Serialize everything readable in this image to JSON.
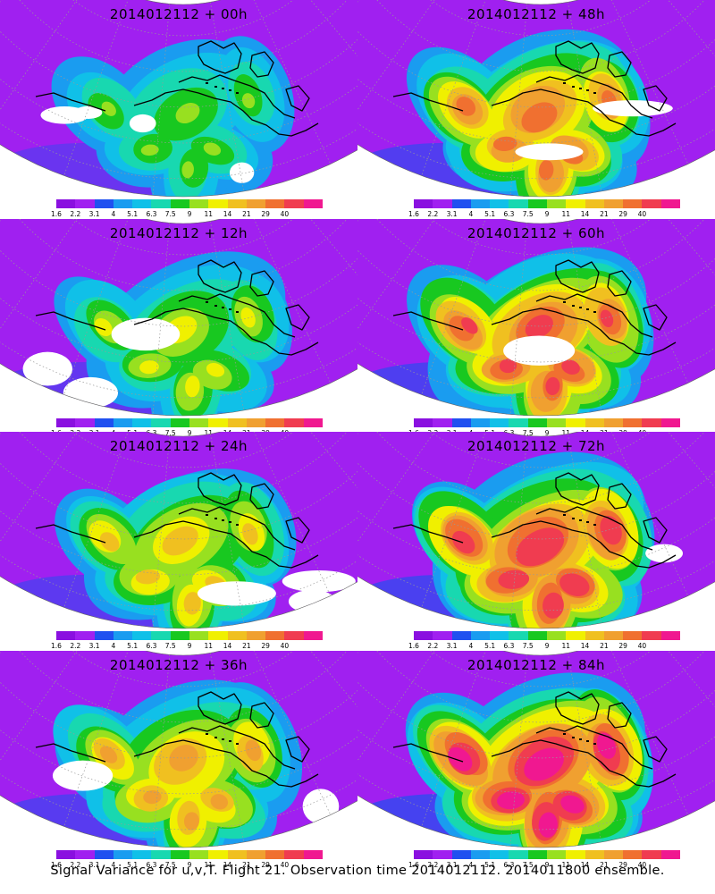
{
  "panels": [
    {
      "title": "2014012112 + 00h",
      "intensity": 0.35
    },
    {
      "title": "2014012112 + 48h",
      "intensity": 0.72
    },
    {
      "title": "2014012112 + 12h",
      "intensity": 0.45
    },
    {
      "title": "2014012112 + 60h",
      "intensity": 0.78
    },
    {
      "title": "2014012112 + 24h",
      "intensity": 0.55
    },
    {
      "title": "2014012112 + 72h",
      "intensity": 0.85
    },
    {
      "title": "2014012112 + 36h",
      "intensity": 0.62
    },
    {
      "title": "2014012112 + 84h",
      "intensity": 0.92
    }
  ],
  "colorbar": {
    "colors": [
      "#8a10e0",
      "#a020f0",
      "#2050f0",
      "#1a9cf0",
      "#10c0e8",
      "#18d8b0",
      "#18c820",
      "#98e020",
      "#f0f000",
      "#f0c020",
      "#f0a030",
      "#f07030",
      "#f03c50",
      "#f01890"
    ],
    "labels": [
      "1.6",
      "2.2",
      "3.1",
      "4",
      "5.1",
      "6.3",
      "7.5",
      "9",
      "11",
      "14",
      "21",
      "29",
      "40"
    ]
  },
  "caption": "Signal Variance for u,v,T. Flight 21. Observation time 2014012112. 2014011800 ensemble."
}
